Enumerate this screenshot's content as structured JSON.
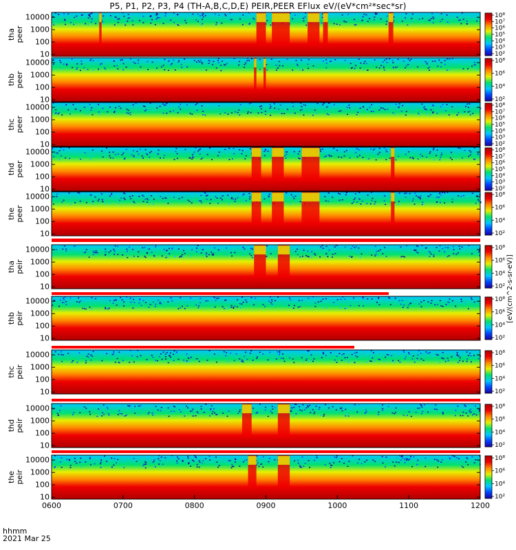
{
  "title": "P5, P1, P2, P3, P4 (TH-A,B,C,D,E) PEIR,PEER EFlux eV/(eV*cm²*sec*sr)",
  "footer": {
    "time_label": "hhmm",
    "date_label": "2021 Mar 25"
  },
  "colors": {
    "bg": "#ffffff",
    "flag_red": "#ff0000",
    "colormap": [
      "#1a00a0",
      "#0044ff",
      "#00c8ff",
      "#00e070",
      "#e8f000",
      "#ff8800",
      "#ee0000",
      "#b00000"
    ]
  },
  "chart_data": {
    "type": "heatmap",
    "xlabel": "hhmm",
    "x_ticks": [
      "0600",
      "0700",
      "0800",
      "0900",
      "1000",
      "1100",
      "1200"
    ],
    "x_range_hhmm": [
      "0600",
      "1200"
    ],
    "y_scale": "log",
    "y_range_eV": [
      7,
      25000
    ],
    "y_ticks": [
      "10",
      "100",
      "1000",
      "10000"
    ],
    "colorbar_units": "eV/(cm^2-s-sr-eV)",
    "colorbar_ticks": [
      "10²",
      "10⁴",
      "10⁶",
      "10⁸"
    ],
    "panels": [
      {
        "probe": "tha",
        "species": "peer",
        "label": "tha\npeer",
        "colorbar_ticks": [
          "10²",
          "10³",
          "10⁴",
          "10⁵",
          "10⁶",
          "10⁷",
          "10⁸"
        ],
        "bursts_hhmm": [
          [
            "0640",
            "0642"
          ],
          [
            "0852",
            "0900"
          ],
          [
            "0905",
            "0920"
          ],
          [
            "0935",
            "0945"
          ],
          [
            "0948",
            "0952"
          ],
          [
            "1043",
            "1047"
          ]
        ]
      },
      {
        "probe": "thb",
        "species": "peer",
        "label": "thb\npeer",
        "colorbar_ticks": [
          "10²",
          "10⁴",
          "10⁶",
          "10⁸"
        ],
        "bursts_hhmm": [
          [
            "0850",
            "0852"
          ],
          [
            "0858",
            "0900"
          ]
        ]
      },
      {
        "probe": "thc",
        "species": "peer",
        "label": "thc\npeer",
        "colorbar_ticks": [
          "10²",
          "10³",
          "10⁴",
          "10⁵",
          "10⁶",
          "10⁷",
          "10⁸"
        ],
        "bursts_hhmm": []
      },
      {
        "probe": "thd",
        "species": "peer",
        "label": "thd\npeer",
        "colorbar_ticks": [
          "10²",
          "10³",
          "10⁴",
          "10⁵",
          "10⁶",
          "10⁷",
          "10⁸"
        ],
        "bursts_hhmm": [
          [
            "0848",
            "0856"
          ],
          [
            "0905",
            "0915"
          ],
          [
            "0930",
            "0945"
          ],
          [
            "1045",
            "1048"
          ]
        ]
      },
      {
        "probe": "the",
        "species": "peer",
        "label": "the\npeer",
        "colorbar_ticks": [
          "10²",
          "10⁴",
          "10⁶",
          "10⁸"
        ],
        "bursts_hhmm": [
          [
            "0848",
            "0856"
          ],
          [
            "0905",
            "0915"
          ],
          [
            "0930",
            "0945"
          ],
          [
            "1045",
            "1048"
          ]
        ]
      },
      {
        "probe": "tha",
        "species": "peir",
        "label": "tha\npeir",
        "colorbar_ticks": [
          "10²",
          "10⁴",
          "10⁶",
          "10⁸"
        ],
        "bursts_hhmm": [
          [
            "0850",
            "0900"
          ],
          [
            "0910",
            "0920"
          ]
        ]
      },
      {
        "probe": "thb",
        "species": "peir",
        "label": "thb\npeir",
        "colorbar_ticks": [
          "10²",
          "10⁴",
          "10⁶",
          "10⁸"
        ],
        "bursts_hhmm": []
      },
      {
        "probe": "thc",
        "species": "peir",
        "label": "thc\npeir",
        "colorbar_ticks": [
          "10²",
          "10⁴",
          "10⁶",
          "10⁸"
        ],
        "bursts_hhmm": []
      },
      {
        "probe": "thd",
        "species": "peir",
        "label": "thd\npeir",
        "colorbar_ticks": [
          "10²",
          "10⁴",
          "10⁶",
          "10⁸"
        ],
        "bursts_hhmm": [
          [
            "0840",
            "0848"
          ],
          [
            "0910",
            "0920"
          ]
        ]
      },
      {
        "probe": "the",
        "species": "peir",
        "label": "the\npeir",
        "colorbar_ticks": [
          "10²",
          "10⁴",
          "10⁶",
          "10⁸"
        ],
        "bursts_hhmm": [
          [
            "0845",
            "0852"
          ],
          [
            "0910",
            "0920"
          ]
        ]
      }
    ]
  }
}
